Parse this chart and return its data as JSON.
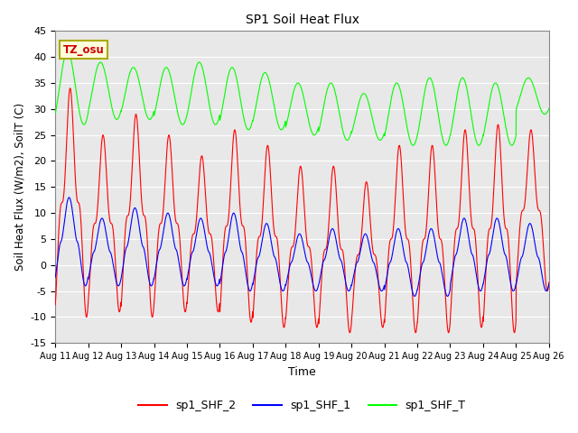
{
  "title": "SP1 Soil Heat Flux",
  "xlabel": "Time",
  "ylabel": "Soil Heat Flux (W/m2), SoilT (C)",
  "ylim": [
    -15,
    45
  ],
  "background_color": "#e8e8e8",
  "grid_color": "#ffffff",
  "tz_label": "TZ_osu",
  "tz_box_color": "#ffffdd",
  "tz_text_color": "#cc0000",
  "tz_border_color": "#aaaa00",
  "line_colors": {
    "sp1_SHF_2": "#ff0000",
    "sp1_SHF_1": "#0000ff",
    "sp1_SHF_T": "#00ff00"
  },
  "legend_labels": [
    "sp1_SHF_2",
    "sp1_SHF_1",
    "sp1_SHF_T"
  ],
  "x_tick_labels": [
    "Aug 11",
    "Aug 12",
    "Aug 13",
    "Aug 14",
    "Aug 15",
    "Aug 16",
    "Aug 17",
    "Aug 18",
    "Aug 19",
    "Aug 20",
    "Aug 21",
    "Aug 22",
    "Aug 23",
    "Aug 24",
    "Aug 25",
    "Aug 26"
  ],
  "n_days": 15,
  "points_per_day": 144,
  "shf2_peaks": [
    34,
    25,
    29,
    25,
    21,
    26,
    23,
    19,
    19,
    16,
    23,
    23,
    26,
    27,
    26
  ],
  "shf2_troughs": [
    -10,
    -9,
    -10,
    -9,
    -9,
    -11,
    -12,
    -12,
    -13,
    -12,
    -13,
    -13,
    -12,
    -13,
    -5
  ],
  "shf1_peaks": [
    13,
    9,
    11,
    10,
    9,
    10,
    8,
    6,
    7,
    6,
    7,
    7,
    9,
    9,
    8
  ],
  "shf1_troughs": [
    -4,
    -4,
    -4,
    -4,
    -4,
    -5,
    -5,
    -5,
    -5,
    -5,
    -6,
    -6,
    -5,
    -5,
    -5
  ],
  "shfT_peaks": [
    41,
    39,
    38,
    38,
    39,
    38,
    37,
    35,
    35,
    33,
    35,
    36,
    36,
    35,
    36
  ],
  "shfT_troughs": [
    27,
    28,
    28,
    27,
    27,
    26,
    26,
    25,
    24,
    24,
    23,
    23,
    23,
    23,
    29
  ]
}
